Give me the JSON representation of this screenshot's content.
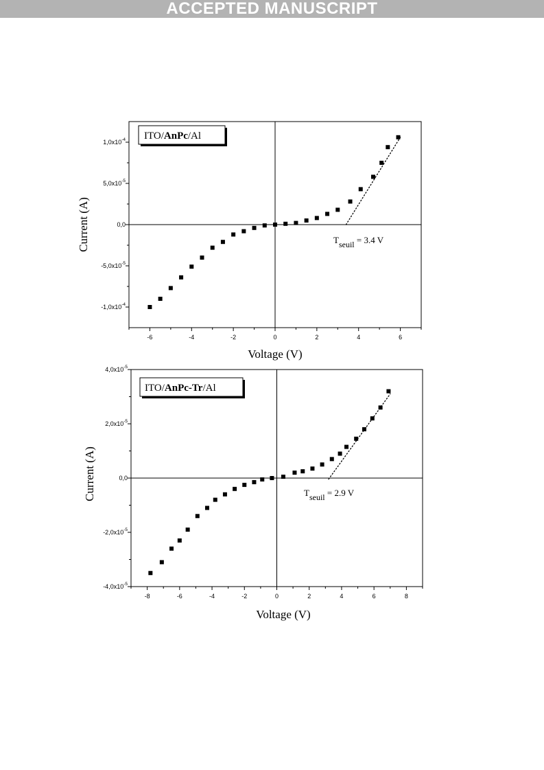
{
  "header": {
    "banner": "ACCEPTED MANUSCRIPT"
  },
  "colors": {
    "banner_bg": "#b3b3b3",
    "banner_text": "#ffffff",
    "marker": "#000000"
  },
  "chart_data": [
    {
      "type": "scatter",
      "legend_label": {
        "plain1": "ITO/",
        "bold": "AnPc",
        "plain2": "/Al"
      },
      "xlabel": "Voltage (V)",
      "ylabel": "Current (A)",
      "xlim": [
        -7,
        7
      ],
      "ylim": [
        -0.000125,
        0.000125
      ],
      "x_ticks": [
        -6,
        -4,
        -2,
        0,
        2,
        4,
        6
      ],
      "x_tick_labels": [
        "-6",
        "-4",
        "-2",
        "0",
        "2",
        "4",
        "6"
      ],
      "y_ticks": [
        -0.0001,
        -5e-05,
        0,
        5e-05,
        0.0001
      ],
      "y_tick_labels": [
        {
          "mant": "-1,0x10",
          "exp": "-4"
        },
        {
          "mant": "-5,0x10",
          "exp": "-5"
        },
        {
          "mant": "0,0",
          "exp": ""
        },
        {
          "mant": "5,0x10",
          "exp": "-5"
        },
        {
          "mant": "1,0x10",
          "exp": "-4"
        }
      ],
      "grid": false,
      "legend_position": "top-left",
      "series": [
        {
          "marker": "square",
          "x": [
            -6.0,
            -5.5,
            -5.0,
            -4.5,
            -4.0,
            -3.5,
            -3.0,
            -2.5,
            -2.0,
            -1.5,
            -1.0,
            -0.5,
            0.0,
            0.5,
            1.0,
            1.5,
            2.0,
            2.5,
            3.0,
            3.6,
            4.1,
            4.7,
            5.1,
            5.4,
            5.9
          ],
          "y": [
            -0.0001,
            -9e-05,
            -7.7e-05,
            -6.4e-05,
            -5.1e-05,
            -4e-05,
            -2.8e-05,
            -2.1e-05,
            -1.2e-05,
            -8e-06,
            -4e-06,
            -1e-06,
            0.0,
            1e-06,
            2e-06,
            5e-06,
            8e-06,
            1.3e-05,
            1.8e-05,
            2.8e-05,
            4.3e-05,
            5.8e-05,
            7.5e-05,
            9.4e-05,
            0.000106
          ]
        }
      ],
      "fit_line": {
        "x": [
          3.4,
          6.0
        ],
        "y": [
          0.0,
          0.000106
        ],
        "style": "dotted"
      },
      "annotation": {
        "prefix": "T",
        "sub": "seuil",
        "suffix": " = 3.4 V"
      }
    },
    {
      "type": "scatter",
      "legend_label": {
        "plain1": "ITO/",
        "bold": "AnPc-Tr",
        "plain2": "/Al"
      },
      "xlabel": "Voltage (V)",
      "ylabel": "Current (A)",
      "xlim": [
        -9,
        9
      ],
      "ylim": [
        -4e-05,
        4e-05
      ],
      "x_ticks": [
        -8,
        -6,
        -4,
        -2,
        0,
        2,
        4,
        6,
        8
      ],
      "x_tick_labels": [
        "-8",
        "-6",
        "-4",
        "-2",
        "0",
        "2",
        "4",
        "6",
        "8"
      ],
      "y_ticks": [
        -4e-05,
        -2e-05,
        0,
        2e-05,
        4e-05
      ],
      "y_tick_labels": [
        {
          "mant": "-4,0x10",
          "exp": "-5"
        },
        {
          "mant": "-2,0x10",
          "exp": "-5"
        },
        {
          "mant": "0,0",
          "exp": ""
        },
        {
          "mant": "2,0x10",
          "exp": "-5"
        },
        {
          "mant": "4,0x10",
          "exp": "-5"
        }
      ],
      "grid": false,
      "legend_position": "top-left",
      "series": [
        {
          "marker": "square",
          "x": [
            -7.8,
            -7.1,
            -6.5,
            -6.0,
            -5.5,
            -4.9,
            -4.3,
            -3.8,
            -3.2,
            -2.6,
            -2.0,
            -1.4,
            -0.9,
            -0.3,
            0.4,
            1.1,
            1.6,
            2.2,
            2.8,
            3.4,
            3.9,
            4.3,
            4.9,
            5.4,
            5.9,
            6.4,
            6.9
          ],
          "y": [
            -3.5e-05,
            -3.1e-05,
            -2.6e-05,
            -2.3e-05,
            -1.9e-05,
            -1.4e-05,
            -1.1e-05,
            -8e-06,
            -6e-06,
            -4e-06,
            -2.5e-06,
            -1.5e-06,
            -5e-07,
            0.0,
            5e-07,
            2e-06,
            2.5e-06,
            3.5e-06,
            5e-06,
            7e-06,
            9e-06,
            1.15e-05,
            1.45e-05,
            1.8e-05,
            2.2e-05,
            2.6e-05,
            3.2e-05
          ]
        }
      ],
      "fit_line": {
        "x": [
          3.2,
          7.0
        ],
        "y": [
          -4e-07,
          3.1e-05
        ],
        "style": "dotted"
      },
      "annotation": {
        "prefix": "T",
        "sub": "seuil",
        "suffix": " = 2.9 V"
      }
    }
  ]
}
